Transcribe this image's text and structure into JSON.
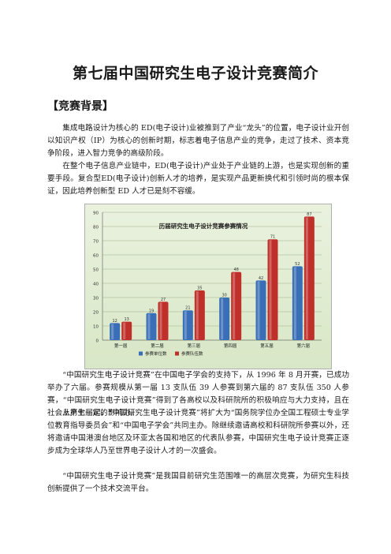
{
  "document": {
    "title": "第七届中国研究生电子设计竞赛简介",
    "section_heading": "【竞赛背景】",
    "paragraphs": [
      "集成电路设计为核心的 ED(电子设计)业被推到了产业“龙头”的位置，电子设计业开创以知识产权（IP）为核心的创新时期，标志着电子信息产业的竞争，走过了技术、资本竞争阶段，进入智力竞争的高级阶段。",
      "在整个电子信息产业链中，ED(电子设计)产业处于产业链的上游，也是实现创新的重要手段。复合型ED(电子设计)创新人才的培养，是实现产品更新换代和引领时尚的根本保证，因此培养创新型 ED 人才已是刻不容缓。",
      "“中国研究生电子设计竞赛”在中国电子学会的支持下，从 1996 年 8 月开赛，已成功举办了六届。参赛规模从第一届 13 支队伍 39 人参赛到第六届的 87 支队伍 350 人参赛，“中国研究生电子设计竞赛”得到了各高校以及科研院所的积极响应与大力支持，且在社会上产生一定的影响力。",
      "从第七届起，“中国研究生电子设计竞赛”将扩大为“国务院学位办全国工程硕士专业学位教育指导委员会”和“中国电子学会”共同主办。除继续邀请高校和科研院所参赛以外，还将邀请中国港澳台地区及环亚太各国和地区的代表队参赛，中国研究生电子设计竞赛正逐步成为全球华人乃至世界电子设计人才的一次盛会。",
      "“中国研究生电子设计竞赛”是我国目前研究生范围唯一的高层次竞赛，为研究生科技创新提供了一个技术交流平台。"
    ]
  },
  "chart_data": {
    "type": "bar",
    "title": "历届研究生电子设计竞赛参赛情况",
    "categories": [
      "第一届",
      "第二届",
      "第三届",
      "第四届",
      "第五届",
      "第六届"
    ],
    "series": [
      {
        "name": "参赛单位数",
        "values": [
          12,
          19,
          21,
          30,
          42,
          52
        ],
        "color": "#3a6fb7"
      },
      {
        "name": "参赛队伍数",
        "values": [
          13,
          27,
          35,
          48,
          71,
          87
        ],
        "color": "#c0302b"
      }
    ],
    "ylim": [
      0,
      90
    ],
    "yticks": [
      0,
      10,
      20,
      30,
      40,
      50,
      60,
      70,
      80,
      90
    ],
    "grid": true,
    "legend_position": "bottom-left"
  }
}
